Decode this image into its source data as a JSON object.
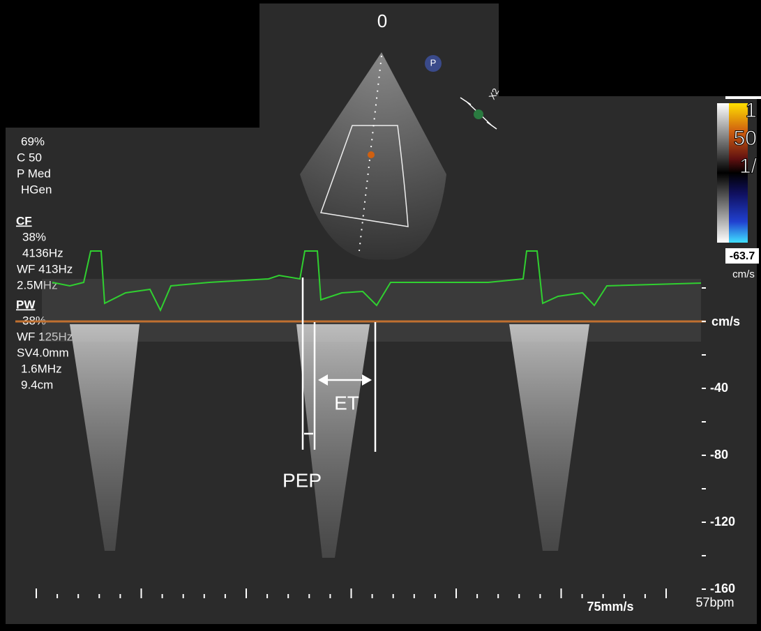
{
  "sector": {
    "depth_marker": "0",
    "probe_icon": "P",
    "zoom": "X2"
  },
  "left_panel": {
    "b_mode": [
      "69%",
      "C 50",
      "P Med",
      "HGen"
    ],
    "cf": {
      "title": "CF",
      "lines": [
        "38%",
        "4136Hz",
        "WF 413Hz",
        "2.5MHz"
      ]
    },
    "pw": {
      "title": "PW",
      "lines": [
        "38%",
        "WF 125Hz",
        "SV4.0mm",
        "1.6MHz",
        "9.4cm"
      ]
    }
  },
  "color_bar": {
    "labels": [
      "1",
      "50",
      "1/"
    ],
    "min": "-63.7",
    "unit": "cm/s"
  },
  "velocity_scale": {
    "unit": "cm/s",
    "ticks": [
      "-40",
      "-80",
      "-120",
      "-160"
    ]
  },
  "annotations": {
    "et": "ET",
    "pep": "PEP"
  },
  "footer": {
    "sweep": "75mm/s",
    "heart_rate": "57bpm"
  }
}
